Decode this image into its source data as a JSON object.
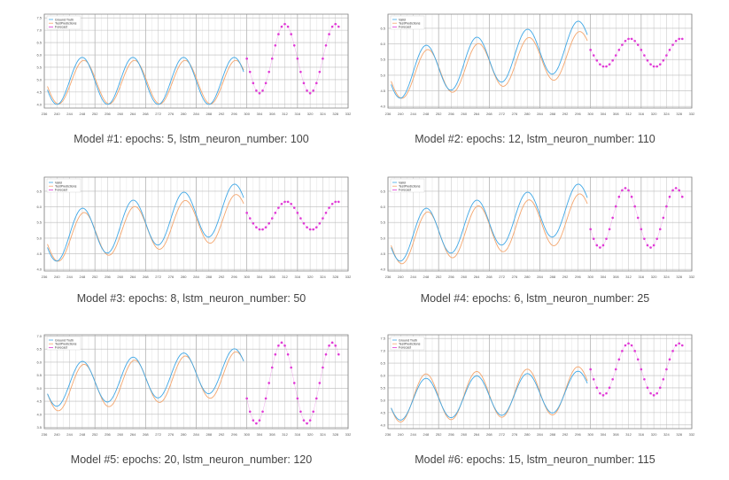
{
  "legend_defaults": [
    "Ground Truth",
    "TestPredictions",
    "Forecast"
  ],
  "colors": {
    "truth": "#3fa7e6",
    "prediction": "#f4a66e",
    "forecast": "#e03ad6",
    "grid_major": "#aaaaaa",
    "grid_minor": "#dddddd",
    "frame": "#888888"
  },
  "panels": [
    {
      "caption": "Model #1: epochs: 5, lstm_neuron_number: 100",
      "chart_data": {
        "type": "line",
        "x_ticks": [
          236,
          240,
          244,
          248,
          252,
          256,
          260,
          264,
          268,
          272,
          276,
          280,
          284,
          288,
          292,
          296,
          300,
          304,
          308,
          312,
          316,
          320,
          324,
          328,
          332
        ],
        "y_ticks": [
          4.0,
          4.5,
          5.0,
          5.5,
          6.0,
          6.5,
          7.0,
          7.5
        ],
        "xlim": [
          236,
          332
        ],
        "ylim": [
          3.85,
          7.65
        ],
        "legend": [
          "Ground Truth",
          "TestPredictions",
          "Forecast"
        ],
        "legend_position": "top-left",
        "series": {
          "truth": {
            "start": 237,
            "end": 299,
            "mid": 4.95,
            "amp": 0.95,
            "period": 16,
            "phase": 244,
            "trend": 0.0
          },
          "prediction": {
            "start": 237,
            "end": 299,
            "mid": 4.9,
            "amp": 0.88,
            "period": 16,
            "phase": 244.5,
            "trend": 0.0
          },
          "forecast": {
            "start": 300,
            "end": 329,
            "mid": 5.85,
            "amp": 1.4,
            "period": 16,
            "phase": 308,
            "trend": 0.0,
            "step": 1
          }
        }
      }
    },
    {
      "caption": "Model #2: epochs: 12, lstm_neuron_number: 110",
      "chart_data": {
        "type": "line",
        "x_ticks": [
          236,
          240,
          244,
          248,
          252,
          256,
          260,
          264,
          268,
          272,
          276,
          280,
          284,
          288,
          292,
          296,
          300,
          304,
          308,
          312,
          316,
          320,
          324,
          328,
          332
        ],
        "y_ticks": [
          4.0,
          4.5,
          5.0,
          5.5,
          6.0,
          6.5
        ],
        "xlim": [
          236,
          332
        ],
        "ylim": [
          3.95,
          6.95
        ],
        "legend": [
          "Valid",
          "TestPredictions",
          "Forecast"
        ],
        "legend_position": "top-left",
        "series": {
          "truth": {
            "start": 237,
            "end": 299,
            "mid": 5.0,
            "amp": 0.78,
            "period": 16,
            "phase": 244,
            "trend": 0.016
          },
          "prediction": {
            "start": 237,
            "end": 299,
            "mid": 4.95,
            "amp": 0.73,
            "period": 16,
            "phase": 244.5,
            "trend": 0.012
          },
          "forecast": {
            "start": 300,
            "end": 329,
            "mid": 5.72,
            "amp": 0.45,
            "period": 16,
            "phase": 308.5,
            "trend": 0.0,
            "step": 1
          }
        }
      }
    },
    {
      "caption": "Model #3: epochs: 8, lstm_neuron_number: 50",
      "chart_data": {
        "type": "line",
        "x_ticks": [
          236,
          240,
          244,
          248,
          252,
          256,
          260,
          264,
          268,
          272,
          276,
          280,
          284,
          288,
          292,
          296,
          300,
          304,
          308,
          312,
          316,
          320,
          324,
          328,
          332
        ],
        "y_ticks": [
          4.0,
          4.5,
          5.0,
          5.5,
          6.0,
          6.5
        ],
        "xlim": [
          236,
          332
        ],
        "ylim": [
          3.95,
          6.95
        ],
        "legend": [
          "Valid",
          "TestPredictions",
          "Forecast"
        ],
        "legend_position": "top-left",
        "series": {
          "truth": {
            "start": 237,
            "end": 299,
            "mid": 5.0,
            "amp": 0.78,
            "period": 16,
            "phase": 244,
            "trend": 0.016
          },
          "prediction": {
            "start": 237,
            "end": 299,
            "mid": 4.95,
            "amp": 0.73,
            "period": 16,
            "phase": 244.5,
            "trend": 0.012
          },
          "forecast": {
            "start": 300,
            "end": 329,
            "mid": 5.72,
            "amp": 0.45,
            "period": 16,
            "phase": 308.5,
            "trend": 0.0,
            "step": 1
          }
        }
      }
    },
    {
      "caption": "Model #4: epochs: 6, lstm_neuron_number: 25",
      "chart_data": {
        "type": "line",
        "x_ticks": [
          236,
          240,
          244,
          248,
          252,
          256,
          260,
          264,
          268,
          272,
          276,
          280,
          284,
          288,
          292,
          296,
          300,
          304,
          308,
          312,
          316,
          320,
          324,
          328,
          332
        ],
        "y_ticks": [
          4.0,
          4.5,
          5.0,
          5.5,
          6.0,
          6.5
        ],
        "xlim": [
          236,
          332
        ],
        "ylim": [
          3.95,
          6.95
        ],
        "legend": [
          "Valid",
          "TestPredictions",
          "Forecast"
        ],
        "legend_position": "top-left",
        "series": {
          "truth": {
            "start": 237,
            "end": 299,
            "mid": 5.0,
            "amp": 0.78,
            "period": 16,
            "phase": 244,
            "trend": 0.016
          },
          "prediction": {
            "start": 237,
            "end": 299,
            "mid": 4.92,
            "amp": 0.78,
            "period": 16,
            "phase": 244.5,
            "trend": 0.012
          },
          "forecast": {
            "start": 300,
            "end": 329,
            "mid": 5.65,
            "amp": 0.95,
            "period": 16,
            "phase": 307,
            "trend": 0.0,
            "step": 1
          }
        }
      }
    },
    {
      "caption": "Model #5: epochs: 20, lstm_neuron_number: 120",
      "chart_data": {
        "type": "line",
        "x_ticks": [
          236,
          240,
          244,
          248,
          252,
          256,
          260,
          264,
          268,
          272,
          276,
          280,
          284,
          288,
          292,
          296,
          300,
          304,
          308,
          312,
          316,
          320,
          324,
          328,
          332
        ],
        "y_ticks": [
          3.5,
          4.0,
          4.5,
          5.0,
          5.5,
          6.0,
          6.5,
          7.0
        ],
        "xlim": [
          236,
          332
        ],
        "ylim": [
          3.45,
          7.05
        ],
        "legend": [
          "Ground Truth",
          "TestPredictions",
          "Forecast"
        ],
        "legend_position": "top-left",
        "series": {
          "truth": {
            "start": 237,
            "end": 299,
            "mid": 5.1,
            "amp": 0.82,
            "period": 16,
            "phase": 244,
            "trend": 0.01
          },
          "prediction": {
            "start": 237,
            "end": 299,
            "mid": 4.95,
            "amp": 0.85,
            "period": 16,
            "phase": 244.5,
            "trend": 0.01
          },
          "forecast": {
            "start": 300,
            "end": 329,
            "mid": 5.2,
            "amp": 1.55,
            "period": 16,
            "phase": 307,
            "trend": 0.0,
            "step": 1
          }
        }
      }
    },
    {
      "caption": "Model #6: epochs: 15, lstm_neuron_number: 115",
      "chart_data": {
        "type": "line",
        "x_ticks": [
          236,
          240,
          244,
          248,
          252,
          256,
          260,
          264,
          268,
          272,
          276,
          280,
          284,
          288,
          292,
          296,
          300,
          304,
          308,
          312,
          316,
          320,
          324,
          328,
          332
        ],
        "y_ticks": [
          4.0,
          4.5,
          5.0,
          5.5,
          6.0,
          6.5,
          7.0,
          7.5
        ],
        "xlim": [
          236,
          332
        ],
        "ylim": [
          3.85,
          7.65
        ],
        "legend": [
          "Ground Truth",
          "TestPredictions",
          "Forecast"
        ],
        "legend_position": "top-left",
        "series": {
          "truth": {
            "start": 237,
            "end": 299,
            "mid": 5.0,
            "amp": 0.82,
            "period": 16,
            "phase": 244,
            "trend": 0.006
          },
          "prediction": {
            "start": 237,
            "end": 299,
            "mid": 5.05,
            "amp": 0.95,
            "period": 16,
            "phase": 244,
            "trend": 0.006
          },
          "forecast": {
            "start": 300,
            "end": 329,
            "mid": 6.25,
            "amp": 1.05,
            "period": 16,
            "phase": 308,
            "trend": 0.0,
            "step": 1
          }
        }
      }
    }
  ]
}
